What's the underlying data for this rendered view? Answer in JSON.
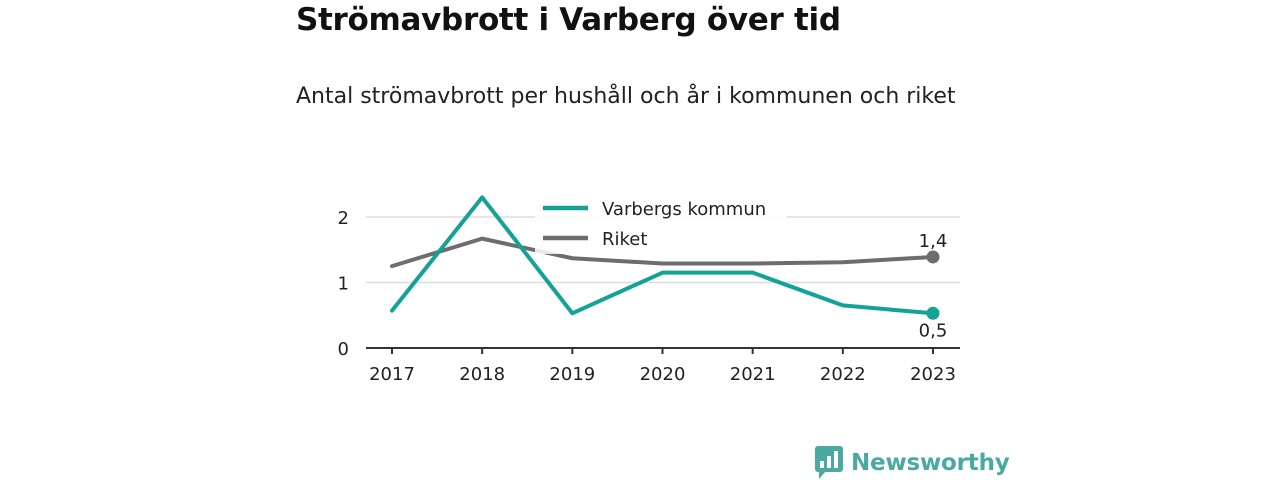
{
  "title": "Strömavbrott i Varberg över tid",
  "subtitle": "Antal strömavbrott per hushåll och år i kommunen och riket",
  "brand": "Newsworthy",
  "chart_data": {
    "type": "line",
    "x": [
      "2017",
      "2018",
      "2019",
      "2020",
      "2021",
      "2022",
      "2023"
    ],
    "ylim": [
      0,
      2.5
    ],
    "yticks": [
      0,
      1,
      2
    ],
    "grid": true,
    "legend_position": "top-center",
    "series": [
      {
        "name": "Varbergs kommun",
        "color": "#13a396",
        "values": [
          0.57,
          2.3,
          0.53,
          1.15,
          1.15,
          0.65,
          0.53
        ],
        "end_label": "0,5"
      },
      {
        "name": "Riket",
        "color": "#6d6c71",
        "values": [
          1.25,
          1.67,
          1.37,
          1.29,
          1.29,
          1.31,
          1.39
        ],
        "end_label": "1,4"
      }
    ]
  }
}
